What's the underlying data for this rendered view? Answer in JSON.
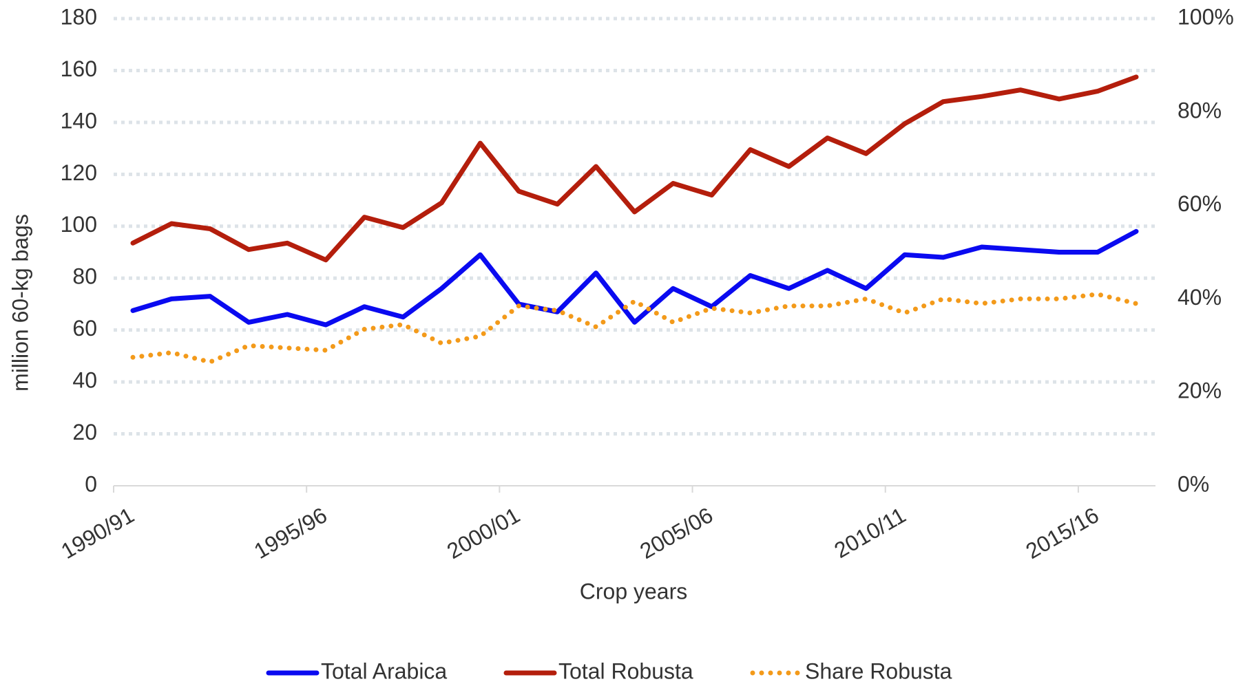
{
  "chart_data": {
    "type": "line",
    "x_label": "Crop years",
    "y_label": "million 60-kg bags",
    "categories": [
      "1990/91",
      null,
      null,
      null,
      null,
      "1995/96",
      null,
      null,
      null,
      null,
      "2000/01",
      null,
      null,
      null,
      null,
      "2005/06",
      null,
      null,
      null,
      null,
      "2010/11",
      null,
      null,
      null,
      null,
      "2015/16",
      null
    ],
    "series": [
      {
        "name": "Total Arabica",
        "color": "#0a0af0",
        "style": "solid",
        "values": [
          67.5,
          72,
          73,
          63,
          66,
          62,
          69,
          65,
          76,
          89,
          70,
          67,
          82,
          63,
          76,
          69,
          81,
          76,
          83,
          76,
          89,
          88,
          92,
          91,
          90,
          90,
          98
        ]
      },
      {
        "name": "Total Robusta",
        "color": "#b41e0c",
        "style": "solid",
        "values": [
          93.5,
          101,
          99,
          91,
          93.5,
          87,
          103.5,
          99.5,
          109,
          132,
          113.5,
          108.5,
          123,
          105.5,
          116.5,
          112,
          129.5,
          123,
          134,
          128,
          139.5,
          148,
          150,
          152.5,
          149,
          152,
          157.5
        ]
      },
      {
        "name": "Share Robusta",
        "color": "#f39a1a",
        "style": "dotted",
        "axis": "y2",
        "values": [
          27.5,
          28.5,
          26.5,
          30,
          29.5,
          29,
          33.5,
          34.5,
          30.5,
          32,
          38.5,
          37.5,
          34,
          39.5,
          35,
          38,
          37,
          38.5,
          38.5,
          40,
          37,
          40,
          39,
          40,
          40,
          41,
          39
        ]
      }
    ],
    "ylim": [
      0,
      180
    ],
    "yticks": [
      0,
      20,
      40,
      60,
      80,
      100,
      120,
      140,
      160,
      180
    ],
    "y2lim": [
      0,
      100
    ],
    "y2ticks": [
      {
        "value": 0,
        "label": "0%"
      },
      {
        "value": 20,
        "label": "20%"
      },
      {
        "value": 40,
        "label": "40%"
      },
      {
        "value": 60,
        "label": "60%"
      },
      {
        "value": 80,
        "label": "80%"
      },
      {
        "value": 100,
        "label": "100%"
      }
    ],
    "grid": true,
    "legend": "bottom"
  }
}
